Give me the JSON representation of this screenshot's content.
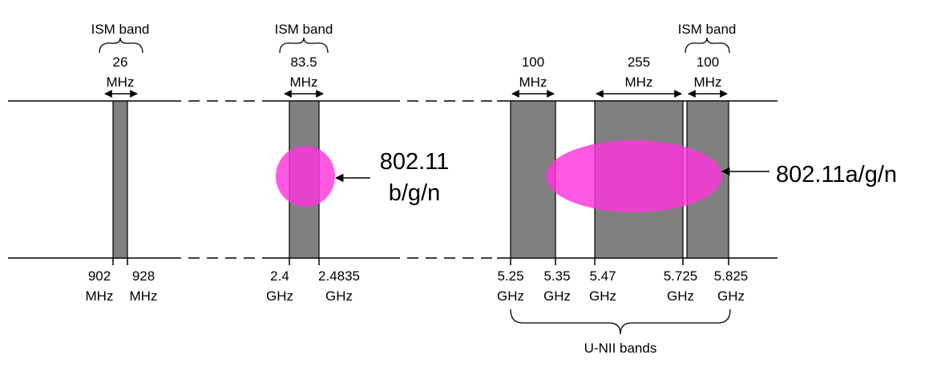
{
  "colors": {
    "band_fill": "#808080",
    "band_stroke": "#000000",
    "highlight": "#ff33dd",
    "line": "#000000",
    "background": "#ffffff"
  },
  "bands": [
    {
      "name": "band-902-928"
    },
    {
      "name": "band-2400-2483"
    },
    {
      "name": "band-5250-5350"
    },
    {
      "name": "band-5470-5725"
    },
    {
      "name": "band-5725-5825"
    }
  ],
  "ism_labels": {
    "ism1": "ISM band",
    "ism2": "ISM band",
    "ism3": "ISM band"
  },
  "bandwidths": {
    "bw1": {
      "value": "26",
      "unit": "MHz"
    },
    "bw2": {
      "value": "83.5",
      "unit": "MHz"
    },
    "bw3": {
      "value": "100",
      "unit": "MHz"
    },
    "bw4": {
      "value": "255",
      "unit": "MHz"
    },
    "bw5": {
      "value": "100",
      "unit": "MHz"
    }
  },
  "ticks": {
    "t902": {
      "value": "902",
      "unit": "MHz"
    },
    "t928": {
      "value": "928",
      "unit": "MHz"
    },
    "t24": {
      "value": "2.4",
      "unit": "GHz"
    },
    "t24835": {
      "value": "2.4835",
      "unit": "GHz"
    },
    "t525": {
      "value": "5.25",
      "unit": "GHz"
    },
    "t535": {
      "value": "5.35",
      "unit": "GHz"
    },
    "t547": {
      "value": "5.47",
      "unit": "GHz"
    },
    "t5725": {
      "value": "5.725",
      "unit": "GHz"
    },
    "t5825": {
      "value": "5.825",
      "unit": "GHz"
    }
  },
  "unii_label": "U-NII bands",
  "standards": {
    "bgn_line1": "802.11",
    "bgn_line2": "b/g/n",
    "agn": "802.11a/g/n"
  }
}
